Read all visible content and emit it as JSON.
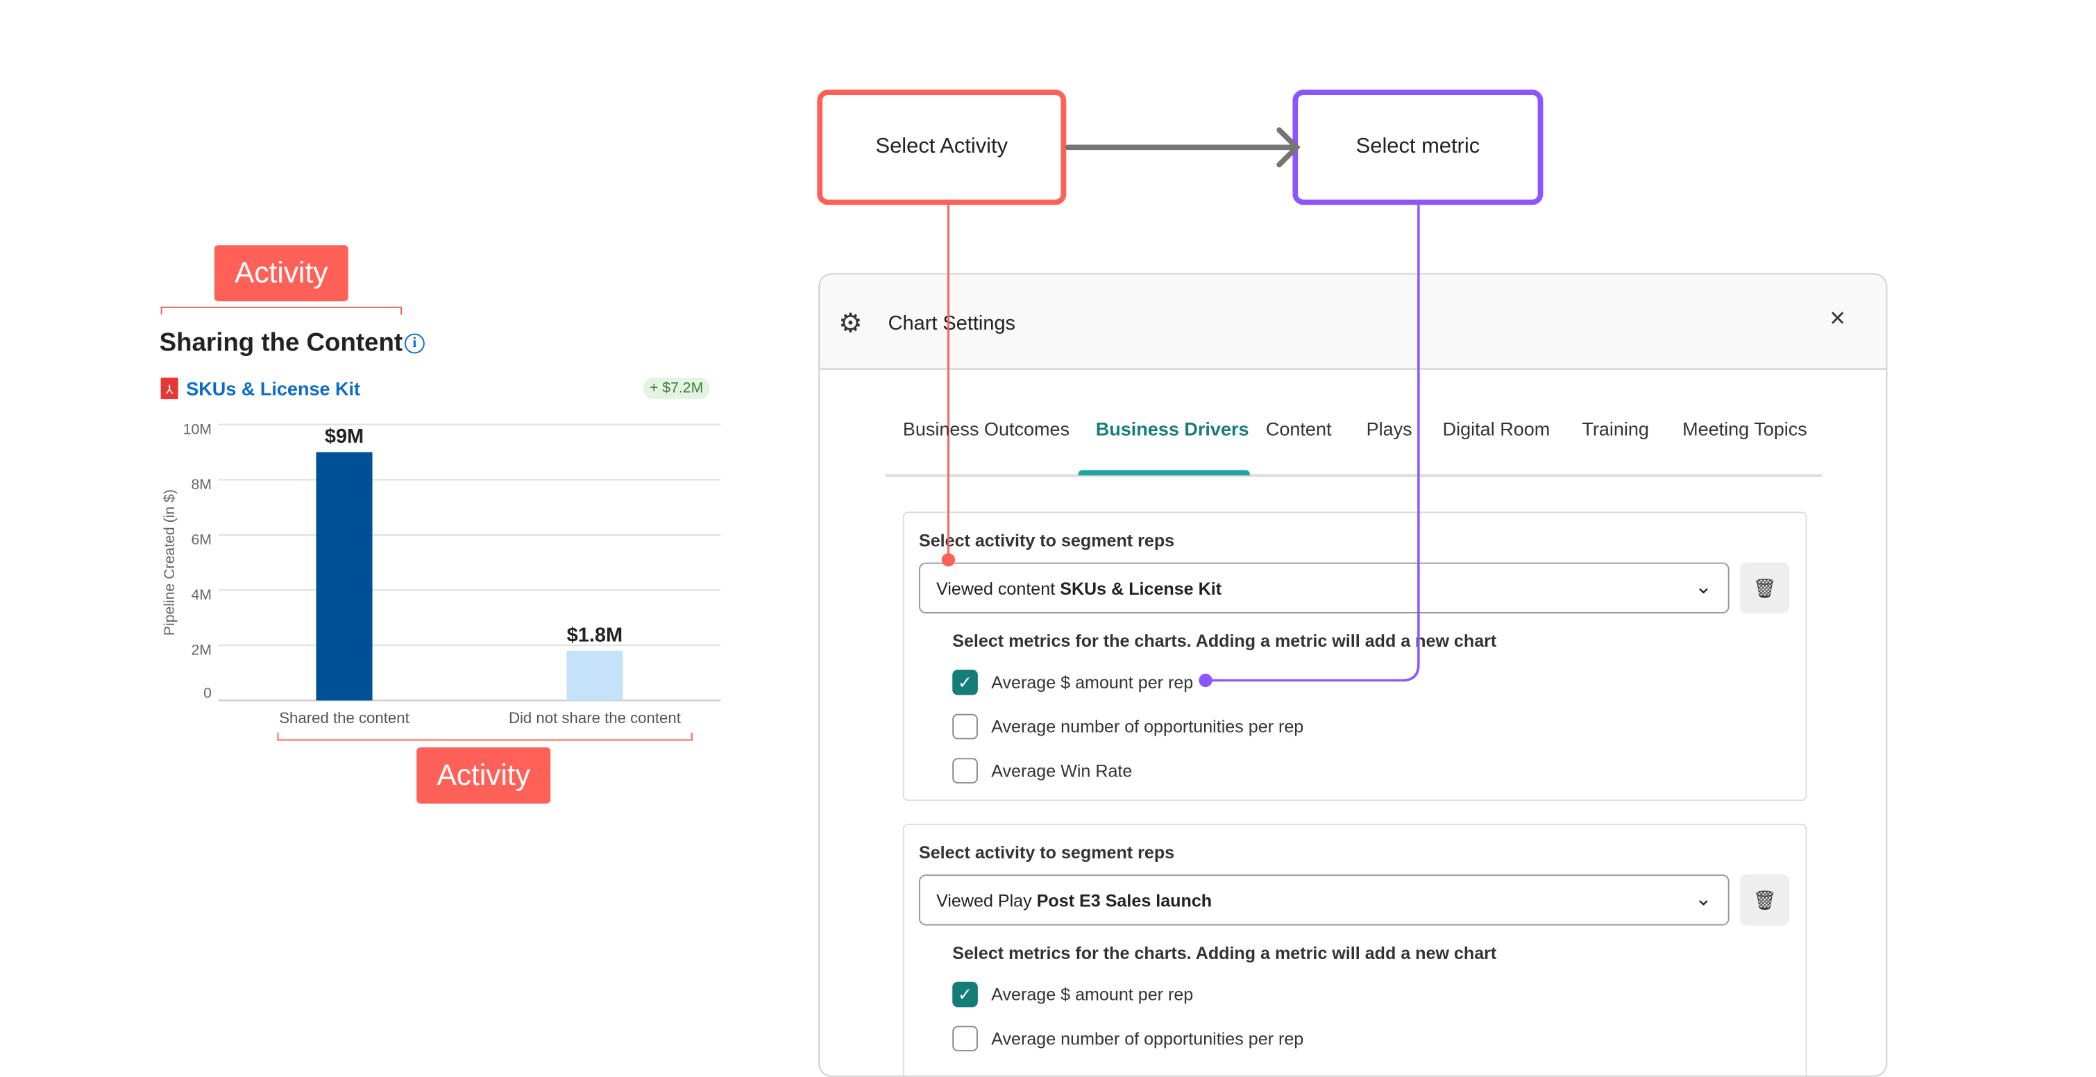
{
  "annotations": {
    "activity_top": "Activity",
    "activity_bottom": "Activity",
    "select_activity": "Select Activity",
    "select_metric": "Select metric"
  },
  "colors": {
    "activity": "#FF6159",
    "metric": "#8B55FF",
    "arrow": "#757575",
    "accent": "#1FA3A3",
    "checkbox": "#167C7A"
  },
  "card": {
    "title": "Sharing the Content",
    "content_link": "SKUs & License Kit",
    "delta_badge": "+ $7.2M"
  },
  "chart_data": {
    "type": "bar",
    "categories": [
      "Shared the content",
      "Did not share the content"
    ],
    "values": [
      9,
      1.8
    ],
    "data_labels": [
      "$9M",
      "$1.8M"
    ],
    "colors": [
      "#005096",
      "#C5E2FA"
    ],
    "ylabel": "Pipeline Created (in $)",
    "yticks": [
      "0",
      "2M",
      "4M",
      "6M",
      "8M",
      "10M"
    ],
    "ylim": [
      0,
      10
    ],
    "grid": true
  },
  "panel": {
    "title": "Chart Settings",
    "close": "×",
    "tabs": [
      "Business Outcomes",
      "Business Drivers",
      "Content",
      "Plays",
      "Digital Room",
      "Training",
      "Meeting Topics"
    ],
    "active_tab": "Business Drivers",
    "sections": [
      {
        "label": "Select activity to segment reps",
        "select_prefix": "Viewed content",
        "select_value": "SKUs & License Kit",
        "metrics_label": "Select metrics for the charts. Adding a metric will add a new chart",
        "metrics": [
          {
            "label": "Average $ amount per rep",
            "checked": true
          },
          {
            "label": "Average number of opportunities per rep",
            "checked": false
          },
          {
            "label": "Average Win Rate",
            "checked": false
          }
        ]
      },
      {
        "label": "Select activity to segment reps",
        "select_prefix": "Viewed Play",
        "select_value": "Post E3 Sales launch",
        "metrics_label": "Select metrics for the charts. Adding a metric will add a new chart",
        "metrics": [
          {
            "label": "Average $ amount per rep",
            "checked": true
          },
          {
            "label": "Average number of opportunities per rep",
            "checked": false
          }
        ]
      }
    ]
  }
}
